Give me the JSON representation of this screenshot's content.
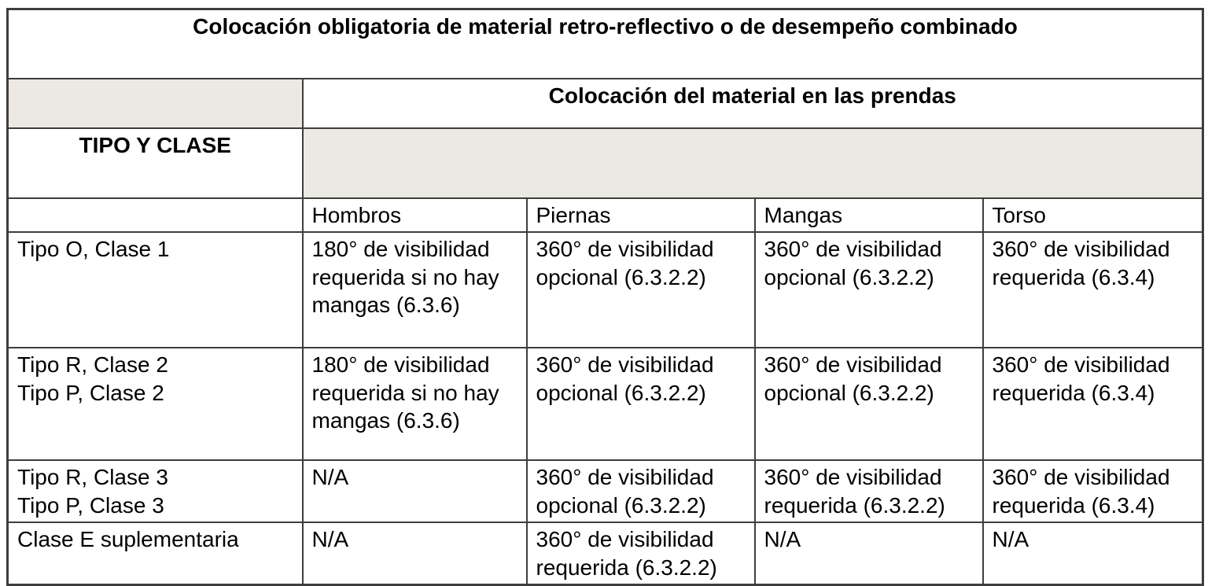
{
  "doc": {
    "title": "Colocación obligatoria de material retro-reflectivo o de desempeño combinado",
    "garment_header": "Colocación del material en las prendas",
    "type_class_header": "TIPO Y CLASE",
    "columns": [
      "Hombros",
      "Piernas",
      "Mangas",
      "Torso"
    ],
    "rows": [
      {
        "label": "Tipo O, Clase 1",
        "cells": [
          "180° de visibilidad requerida si no hay mangas (6.3.6)",
          "360° de visibilidad opcional (6.3.2.2)",
          "360° de visibilidad opcional (6.3.2.2)",
          "360° de visibilidad requerida (6.3.4)"
        ]
      },
      {
        "label": "Tipo R, Clase 2\nTipo P, Clase 2",
        "cells": [
          "180° de visibilidad requerida si no hay mangas (6.3.6)",
          "360° de visibilidad opcional (6.3.2.2)",
          "360° de visibilidad opcional (6.3.2.2)",
          "360° de visibilidad requerida (6.3.4)"
        ]
      },
      {
        "label": "Tipo R, Clase 3\nTipo P, Clase 3",
        "cells": [
          "N/A",
          "360° de visibilidad opcional (6.3.2.2)",
          "360° de visibilidad requerida (6.3.2.2)",
          "360° de visibilidad requerida (6.3.4)"
        ]
      },
      {
        "label": "Clase E suplementaria",
        "cells": [
          "N/A",
          "360° de visibilidad requerida (6.3.2.2)",
          "N/A",
          "N/A"
        ]
      }
    ],
    "colors": {
      "shaded_cell": "#ece9e2",
      "border": "#3e3e3e",
      "text": "#000000"
    }
  }
}
